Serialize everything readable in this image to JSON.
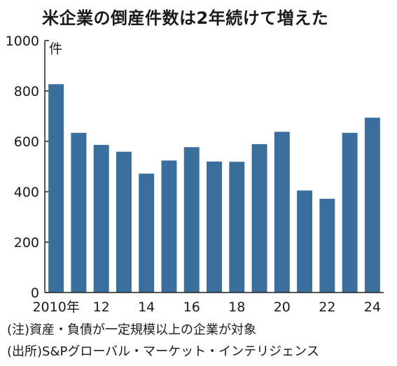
{
  "chart_data": {
    "type": "bar",
    "title": "米企業の倒産件数は2年続けて増えた",
    "unit_label": "件",
    "categories": [
      "2010",
      "2011",
      "2012",
      "2013",
      "2014",
      "2015",
      "2016",
      "2017",
      "2018",
      "2019",
      "2020",
      "2021",
      "2022",
      "2023",
      "2024"
    ],
    "values": [
      827,
      634,
      586,
      559,
      472,
      524,
      577,
      520,
      519,
      589,
      638,
      405,
      372,
      634,
      694
    ],
    "y_ticks": [
      0,
      200,
      400,
      600,
      800,
      1000
    ],
    "ylim": [
      0,
      1000
    ],
    "x_tick_labels": [
      {
        "category": "2010",
        "label": "2010年"
      },
      {
        "category": "2012",
        "label": "12"
      },
      {
        "category": "2014",
        "label": "14"
      },
      {
        "category": "2016",
        "label": "16"
      },
      {
        "category": "2018",
        "label": "18"
      },
      {
        "category": "2020",
        "label": "20"
      },
      {
        "category": "2022",
        "label": "22"
      },
      {
        "category": "2024",
        "label": "24"
      }
    ],
    "bar_color": "#3a6f9d",
    "grid": false
  },
  "notes": {
    "note": "(注)資産・負債が一定規模以上の企業が対象",
    "source": "(出所)S&Pグローバル・マーケット・インテリジェンス"
  }
}
